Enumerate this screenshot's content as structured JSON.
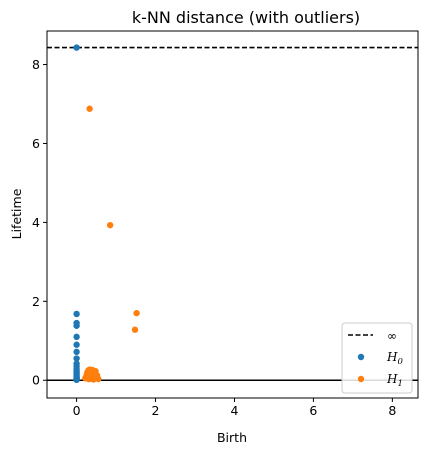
{
  "chart_data": {
    "type": "scatter",
    "title": "k-NN distance (with outliers)",
    "xlabel": "Birth",
    "ylabel": "Lifetime",
    "xlim": [
      -0.75,
      8.65
    ],
    "ylim": [
      -0.45,
      8.85
    ],
    "xticks": [
      0,
      2,
      4,
      6,
      8
    ],
    "yticks": [
      0,
      2,
      4,
      6,
      8
    ],
    "infinity_level": 8.43,
    "infinity_label": "∞",
    "legend_placement": "lower right",
    "series": [
      {
        "name_main": "H",
        "name_sub": "0",
        "color": "#1f77b4",
        "points": [
          [
            0,
            8.43
          ],
          [
            0,
            1.68
          ],
          [
            0,
            1.45
          ],
          [
            0,
            1.38
          ],
          [
            0,
            1.1
          ],
          [
            0,
            0.9
          ],
          [
            0,
            0.72
          ],
          [
            0,
            0.55
          ],
          [
            0,
            0.42
          ],
          [
            0,
            0.35
          ],
          [
            0,
            0.28
          ],
          [
            0,
            0.22
          ],
          [
            0,
            0.18
          ],
          [
            0,
            0.14
          ],
          [
            0,
            0.1
          ],
          [
            0,
            0.07
          ],
          [
            0,
            0.05
          ],
          [
            0,
            0.03
          ],
          [
            0,
            0.02
          ],
          [
            0,
            0.01
          ]
        ]
      },
      {
        "name_main": "H",
        "name_sub": "1",
        "color": "#ff7f0e",
        "points": [
          [
            0.33,
            6.88
          ],
          [
            0.85,
            3.93
          ],
          [
            1.52,
            1.7
          ],
          [
            1.48,
            1.28
          ],
          [
            0.22,
            0.05
          ],
          [
            0.25,
            0.12
          ],
          [
            0.27,
            0.2
          ],
          [
            0.28,
            0.08
          ],
          [
            0.3,
            0.25
          ],
          [
            0.31,
            0.03
          ],
          [
            0.32,
            0.15
          ],
          [
            0.33,
            0.27
          ],
          [
            0.34,
            0.06
          ],
          [
            0.35,
            0.1
          ],
          [
            0.36,
            0.18
          ],
          [
            0.37,
            0.22
          ],
          [
            0.38,
            0.04
          ],
          [
            0.39,
            0.13
          ],
          [
            0.4,
            0.26
          ],
          [
            0.41,
            0.08
          ],
          [
            0.42,
            0.17
          ],
          [
            0.43,
            0.02
          ],
          [
            0.44,
            0.2
          ],
          [
            0.45,
            0.11
          ],
          [
            0.46,
            0.05
          ],
          [
            0.47,
            0.15
          ],
          [
            0.48,
            0.23
          ],
          [
            0.5,
            0.07
          ],
          [
            0.52,
            0.12
          ],
          [
            0.55,
            0.03
          ]
        ]
      }
    ]
  }
}
